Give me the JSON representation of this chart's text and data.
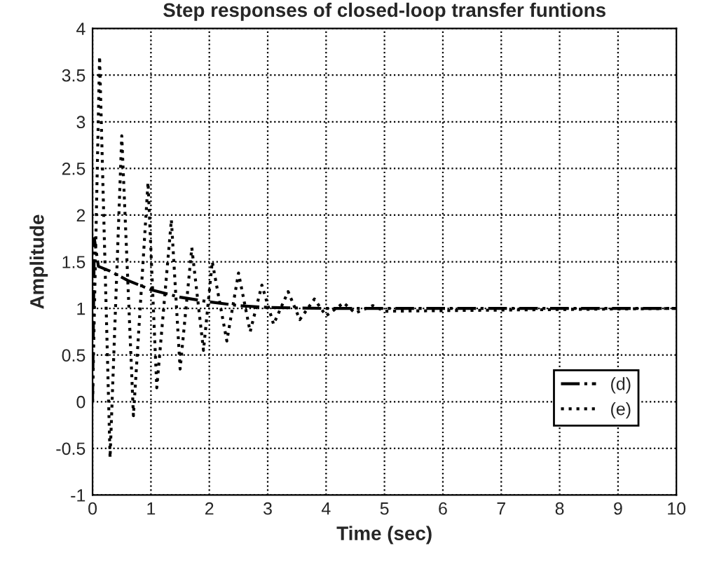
{
  "chart_data": {
    "type": "line",
    "title": "Step responses of closed-loop transfer funtions",
    "xlabel": "Time (sec)",
    "ylabel": "Amplitude",
    "xlim": [
      0,
      10
    ],
    "xticks": [
      0,
      1,
      2,
      3,
      4,
      5,
      6,
      7,
      8,
      9,
      10
    ],
    "ylim": [
      -1,
      4
    ],
    "yticks": [
      -1,
      -0.5,
      0,
      0.5,
      1,
      1.5,
      2,
      2.5,
      3,
      3.5,
      4
    ],
    "grid": true,
    "legend": "bottom right",
    "marker": "none",
    "series": [
      {
        "name": "(d)",
        "color": "#000000",
        "line_style": "dashdot",
        "x": [
          0,
          0.03,
          0.1,
          0.3,
          0.6,
          1.0,
          1.5,
          2.0,
          2.5,
          3.0,
          4.0,
          5.0,
          10.0
        ],
        "values": [
          0,
          1.75,
          1.45,
          1.4,
          1.3,
          1.2,
          1.12,
          1.07,
          1.03,
          1.01,
          1.0,
          1.0,
          1.0
        ]
      },
      {
        "name": "(e)",
        "color": "#000000",
        "line_style": "dotted",
        "x": [
          0,
          0.12,
          0.3,
          0.5,
          0.7,
          0.95,
          1.1,
          1.35,
          1.5,
          1.7,
          1.9,
          2.05,
          2.3,
          2.5,
          2.7,
          2.9,
          3.1,
          3.35,
          3.55,
          3.8,
          4.0,
          4.3,
          4.5,
          4.8,
          5.0,
          10.0
        ],
        "values": [
          0,
          3.7,
          -0.6,
          2.85,
          -0.15,
          2.35,
          0.15,
          1.95,
          0.35,
          1.65,
          0.55,
          1.5,
          0.65,
          1.38,
          0.75,
          1.25,
          0.83,
          1.18,
          0.88,
          1.1,
          0.92,
          1.06,
          0.95,
          1.03,
          0.97,
          1.0
        ]
      }
    ]
  }
}
